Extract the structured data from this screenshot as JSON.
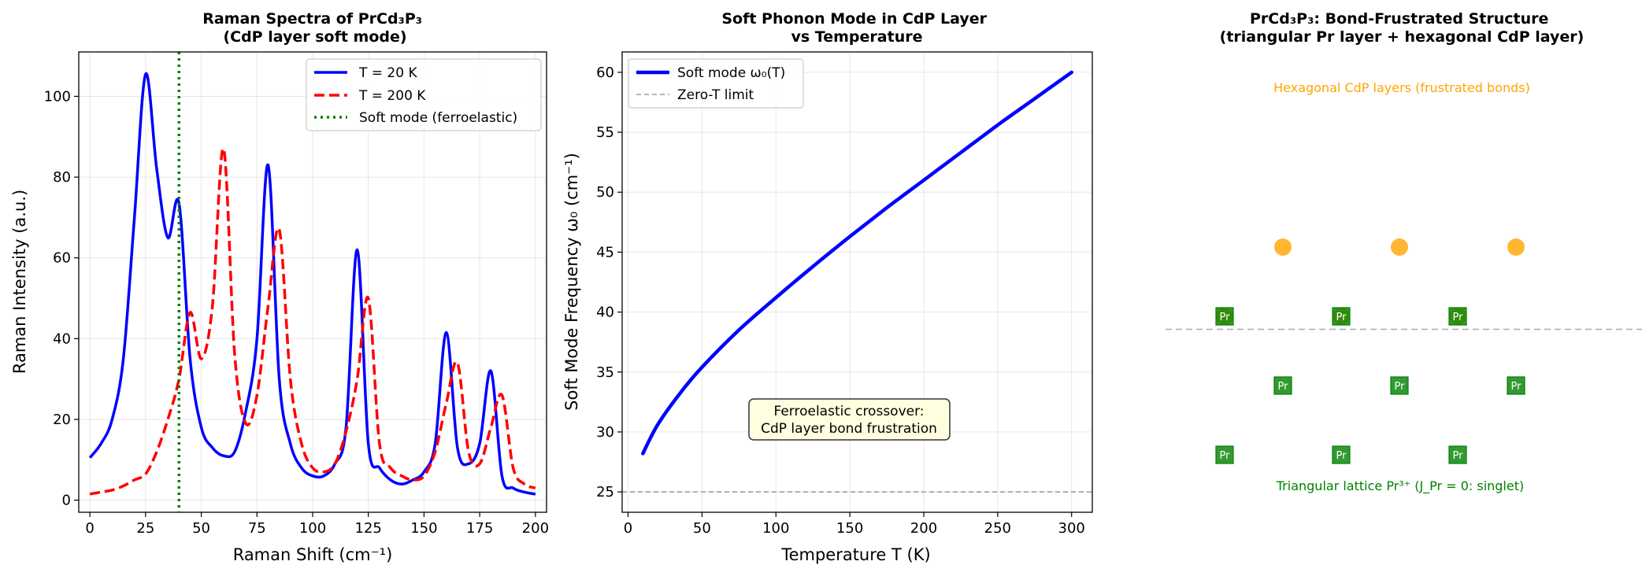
{
  "chart_data": [
    {
      "type": "line",
      "title": "Raman Spectra of PrCd₃P₃\n(CdP layer soft mode)",
      "xlabel": "Raman Shift (cm⁻¹)",
      "ylabel": "Raman Intensity (a.u.)",
      "xlim": [
        -5,
        205
      ],
      "ylim": [
        -3,
        111
      ],
      "xticks": [
        0,
        25,
        50,
        75,
        100,
        125,
        150,
        175,
        200
      ],
      "yticks": [
        0,
        20,
        40,
        60,
        80,
        100
      ],
      "grid": true,
      "legend_position": "top-right",
      "series": [
        {
          "name": "T = 20 K",
          "color": "#0000ff",
          "style": "solid",
          "x": [
            0,
            5,
            10,
            15,
            20,
            25,
            30,
            35,
            40,
            45,
            50,
            55,
            60,
            65,
            70,
            75,
            80,
            85,
            90,
            95,
            100,
            105,
            110,
            115,
            120,
            125,
            130,
            135,
            140,
            145,
            150,
            155,
            160,
            165,
            170,
            175,
            180,
            185,
            190,
            195,
            200
          ],
          "y": [
            10.5,
            14,
            20,
            35,
            70,
            105.5,
            82,
            65,
            73.5,
            35,
            18,
            13,
            11,
            12,
            22,
            40,
            83,
            30,
            14,
            8,
            6,
            6,
            9,
            18,
            62,
            14,
            8,
            5,
            4,
            5,
            7,
            14,
            41.5,
            13,
            9,
            14,
            32,
            6,
            3,
            2,
            1.5
          ]
        },
        {
          "name": "T = 200 K",
          "color": "#ff0000",
          "style": "dashed",
          "x": [
            0,
            5,
            10,
            15,
            20,
            25,
            30,
            35,
            40,
            45,
            50,
            55,
            60,
            65,
            70,
            75,
            80,
            85,
            90,
            95,
            100,
            105,
            110,
            115,
            120,
            125,
            130,
            135,
            140,
            145,
            150,
            155,
            160,
            165,
            170,
            175,
            180,
            185,
            190,
            195,
            200
          ],
          "y": [
            1.5,
            2,
            2.5,
            3.5,
            5,
            6.5,
            12,
            20,
            30,
            46.5,
            35,
            48,
            87,
            36,
            19,
            26,
            48,
            67,
            30,
            14,
            8,
            7,
            9,
            17,
            30,
            50,
            14,
            8,
            6,
            5,
            6,
            12,
            24,
            34,
            12,
            9,
            18,
            26,
            8,
            4,
            3
          ]
        }
      ],
      "annotations": [
        {
          "type": "vline",
          "x": 40,
          "name": "Soft mode (ferroelastic)",
          "color": "#008000",
          "style": "dotted"
        }
      ]
    },
    {
      "type": "line",
      "title": "Soft Phonon Mode in CdP Layer\nvs Temperature",
      "xlabel": "Temperature T (K)",
      "ylabel": "Soft Mode Frequency ω₀ (cm⁻¹)",
      "xlim": [
        -4,
        314
      ],
      "ylim": [
        23.3,
        61.7
      ],
      "xticks": [
        0,
        50,
        100,
        150,
        200,
        250,
        300
      ],
      "yticks": [
        25,
        30,
        35,
        40,
        45,
        50,
        55,
        60
      ],
      "grid": true,
      "legend_position": "top-left",
      "series": [
        {
          "name": "Soft mode ω₀(T)",
          "color": "#0000ff",
          "style": "solid",
          "x": [
            10,
            20,
            35,
            50,
            75,
            100,
            125,
            150,
            175,
            200,
            225,
            250,
            275,
            300
          ],
          "y": [
            28.2,
            30.6,
            33.2,
            35.4,
            38.5,
            41.2,
            43.8,
            46.3,
            48.7,
            51.0,
            53.3,
            55.6,
            57.8,
            60.0
          ]
        }
      ],
      "annotations": [
        {
          "type": "hline",
          "y": 25,
          "name": "Zero-T limit",
          "color": "#999999",
          "style": "dashed"
        },
        {
          "type": "textbox",
          "x": 150,
          "y": 30.5,
          "text": [
            "Ferroelastic crossover:",
            "CdP layer bond frustration"
          ]
        }
      ]
    },
    {
      "type": "diagram",
      "title": "PrCd₃P₃: Bond-Frustrated Structure\n(triangular Pr layer + hexagonal CdP layer)",
      "hex_caption": "Hexagonal CdP layers (frustrated bonds)",
      "tri_caption": "Triangular lattice Pr³⁺ (J_Pr = 0: singlet)",
      "site_label": "Pr",
      "cd_color": "#ffa500",
      "pr_color": "#008000",
      "cd_sites": [
        [
          0.5,
          2.4
        ],
        [
          1.5,
          2.4
        ],
        [
          2.5,
          2.4
        ],
        [
          0,
          1.6
        ],
        [
          1,
          1.6
        ],
        [
          2,
          1.6
        ]
      ],
      "pr_sites": [
        [
          0,
          1.6
        ],
        [
          1,
          1.6
        ],
        [
          2,
          1.6
        ],
        [
          0.5,
          0.8
        ],
        [
          1.5,
          0.8
        ],
        [
          2.5,
          0.8
        ],
        [
          0,
          0
        ],
        [
          1,
          0
        ],
        [
          2,
          0
        ]
      ],
      "layer_divider_y": 1.45
    }
  ]
}
